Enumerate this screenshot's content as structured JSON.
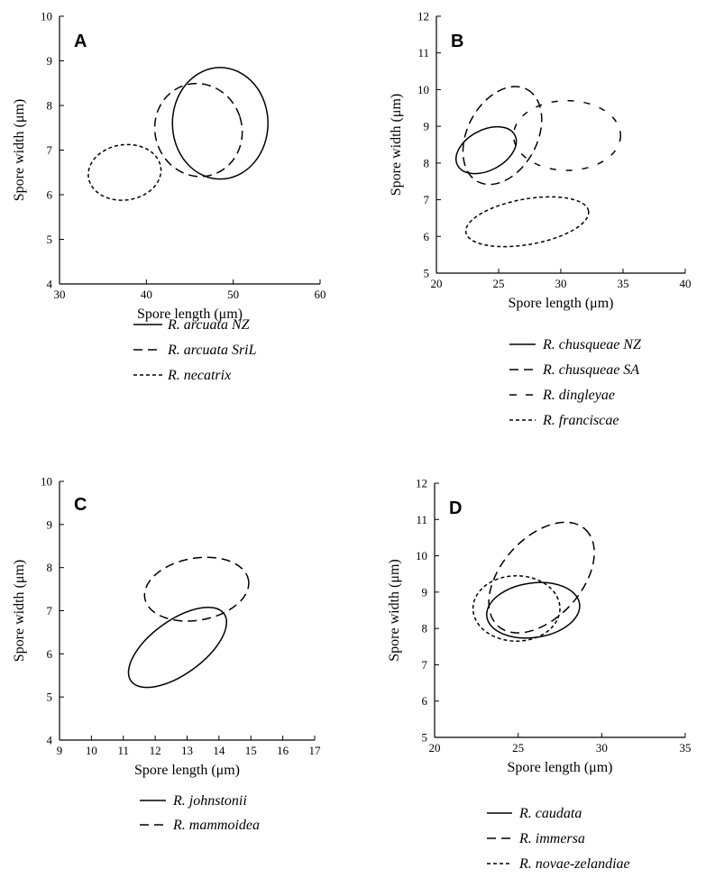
{
  "figure": {
    "panels": [
      {
        "letter": "A",
        "xlabel": "Spore length (μm)",
        "ylabel": "Spore width (μm)",
        "xlim": [
          30,
          60
        ],
        "ylim": [
          4,
          10
        ],
        "xticks": [
          30,
          40,
          50,
          60
        ],
        "yticks": [
          4,
          5,
          6,
          7,
          8,
          9,
          10
        ],
        "legend": [
          {
            "name": "R. arcuata NZ",
            "style": "solid"
          },
          {
            "name": "R. arcuata SriL",
            "style": "dashed"
          },
          {
            "name": "R. necatrix",
            "style": "dotted"
          }
        ]
      },
      {
        "letter": "B",
        "xlabel": "Spore length (μm)",
        "ylabel": "Spore width (μm)",
        "xlim": [
          20,
          40
        ],
        "ylim": [
          5,
          12
        ],
        "xticks": [
          20,
          25,
          30,
          35,
          40
        ],
        "yticks": [
          5,
          6,
          7,
          8,
          9,
          10,
          11,
          12
        ],
        "legend": [
          {
            "name": "R. chusqueae NZ",
            "style": "solid"
          },
          {
            "name": "R. chusqueae SA",
            "style": "dashed"
          },
          {
            "name": "R. dingleyae",
            "style": "sparse"
          },
          {
            "name": "R. franciscae",
            "style": "dotted"
          }
        ]
      },
      {
        "letter": "C",
        "xlabel": "Spore length (μm)",
        "ylabel": "Spore width (μm)",
        "xlim": [
          9,
          17
        ],
        "ylim": [
          4,
          10
        ],
        "xticks": [
          9,
          10,
          11,
          12,
          13,
          14,
          15,
          16,
          17
        ],
        "yticks": [
          4,
          5,
          6,
          7,
          8,
          9,
          10
        ],
        "legend": [
          {
            "name": "R. johnstonii",
            "style": "solid"
          },
          {
            "name": "R. mammoidea",
            "style": "dashed"
          }
        ]
      },
      {
        "letter": "D",
        "xlabel": "Spore length (μm)",
        "ylabel": "Spore width (μm)",
        "xlim": [
          20,
          35
        ],
        "ylim": [
          5,
          12
        ],
        "xticks": [
          20,
          25,
          30,
          35
        ],
        "yticks": [
          5,
          6,
          7,
          8,
          9,
          10,
          11,
          12
        ],
        "legend": [
          {
            "name": "R. caudata",
            "style": "solid"
          },
          {
            "name": "R. immersa",
            "style": "dashed"
          },
          {
            "name": "R. novae-zelandiae",
            "style": "dotted"
          }
        ]
      }
    ]
  },
  "chart_data": [
    {
      "type": "scatter",
      "title": "A",
      "xlabel": "Spore length (μm)",
      "ylabel": "Spore width (μm)",
      "xlim": [
        30,
        60
      ],
      "ylim": [
        4,
        10
      ],
      "grid": false,
      "legend_position": "below",
      "series": [
        {
          "name": "R. arcuata NZ",
          "shape": "ellipse",
          "cx": 48.5,
          "cy": 7.6,
          "rx": 5.5,
          "ry": 1.25,
          "angle_deg": 0,
          "style": "solid"
        },
        {
          "name": "R. arcuata SriL",
          "shape": "ellipse",
          "cx": 46.0,
          "cy": 7.45,
          "rx": 5.0,
          "ry": 1.05,
          "angle_deg": 18,
          "style": "dashed"
        },
        {
          "name": "R. necatrix",
          "shape": "ellipse",
          "cx": 37.5,
          "cy": 6.5,
          "rx": 4.2,
          "ry": 0.62,
          "angle_deg": 8,
          "style": "dotted"
        }
      ]
    },
    {
      "type": "scatter",
      "title": "B",
      "xlabel": "Spore length (μm)",
      "ylabel": "Spore width (μm)",
      "xlim": [
        20,
        40
      ],
      "ylim": [
        5,
        12
      ],
      "grid": false,
      "legend_position": "below",
      "series": [
        {
          "name": "R. chusqueae NZ",
          "shape": "ellipse",
          "cx": 24.0,
          "cy": 8.35,
          "rx": 2.6,
          "ry": 0.55,
          "angle_deg": 28,
          "style": "solid"
        },
        {
          "name": "R. chusqueae SA",
          "shape": "ellipse",
          "cx": 25.3,
          "cy": 8.75,
          "rx": 4.2,
          "ry": 0.95,
          "angle_deg": 62,
          "style": "dashed"
        },
        {
          "name": "R. dingleyae",
          "shape": "ellipse",
          "cx": 30.5,
          "cy": 8.75,
          "rx": 4.3,
          "ry": 0.95,
          "angle_deg": 0,
          "style": "sparse"
        },
        {
          "name": "R. franciscae",
          "shape": "ellipse",
          "cx": 27.3,
          "cy": 6.4,
          "rx": 5.0,
          "ry": 0.62,
          "angle_deg": 10,
          "style": "dotted"
        }
      ]
    },
    {
      "type": "scatter",
      "title": "C",
      "xlabel": "Spore length (μm)",
      "ylabel": "Spore width (μm)",
      "xlim": [
        9,
        17
      ],
      "ylim": [
        4,
        10
      ],
      "grid": false,
      "legend_position": "below",
      "series": [
        {
          "name": "R. johnstonii",
          "shape": "ellipse",
          "cx": 12.7,
          "cy": 6.15,
          "rx": 1.8,
          "ry": 0.62,
          "angle_deg": 36,
          "style": "solid"
        },
        {
          "name": "R. mammoidea",
          "shape": "ellipse",
          "cx": 13.3,
          "cy": 7.5,
          "rx": 1.65,
          "ry": 0.72,
          "angle_deg": 10,
          "style": "dashed"
        }
      ]
    },
    {
      "type": "scatter",
      "title": "D",
      "xlabel": "Spore length (μm)",
      "ylabel": "Spore width (μm)",
      "xlim": [
        20,
        35
      ],
      "ylim": [
        5,
        12
      ],
      "grid": false,
      "legend_position": "below",
      "series": [
        {
          "name": "R. caudata",
          "shape": "ellipse",
          "cx": 25.9,
          "cy": 8.5,
          "rx": 2.8,
          "ry": 0.75,
          "angle_deg": 8,
          "style": "solid"
        },
        {
          "name": "R. immersa",
          "shape": "ellipse",
          "cx": 26.4,
          "cy": 9.4,
          "rx": 3.9,
          "ry": 1.1,
          "angle_deg": 48,
          "style": "dashed"
        },
        {
          "name": "R. novae-zelandiae",
          "shape": "ellipse",
          "cx": 24.9,
          "cy": 8.55,
          "rx": 2.6,
          "ry": 0.9,
          "angle_deg": 0,
          "style": "dotted"
        }
      ]
    }
  ]
}
